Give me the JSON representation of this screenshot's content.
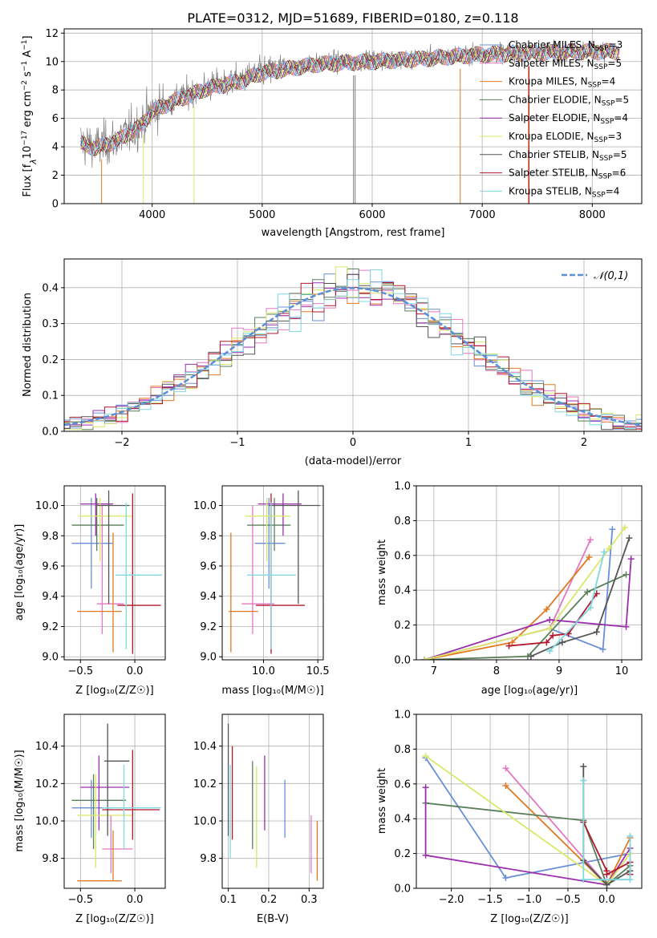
{
  "chart_data": {
    "colors": {
      "chabrier_miles": "#6a8fd8",
      "salpeter_miles": "#e377c2",
      "kroupa_miles": "#e07b24",
      "chabrier_elodie": "#5a7f5a",
      "salpeter_elodie": "#9b2fae",
      "kroupa_elodie": "#d9e868",
      "chabrier_stelib": "#555555",
      "salpeter_stelib": "#b2182b",
      "kroupa_stelib": "#7fd8e0",
      "gaussian": "#5b8fd6"
    },
    "spectrum": {
      "type": "line",
      "title": "PLATE=0312, MJD=51689, FIBERID=0180, z=0.118",
      "xlabel": "wavelength [Angstrom, rest frame]",
      "ylabel": "Flux [fλ10⁻¹⁷ erg cm⁻² s⁻¹ A⁻¹]",
      "xlim": [
        3200,
        8450
      ],
      "ylim": [
        0,
        12.3
      ],
      "xticks": [
        4000,
        5000,
        6000,
        7000,
        8000
      ],
      "yticks": [
        0,
        2,
        4,
        6,
        8,
        10,
        12
      ],
      "legend_position": "upper-right",
      "series": [
        {
          "name": "Chabrier MILES, N_SSP=3",
          "label": "Chabrier MILES, N",
          "sub": "SSP",
          "rest": "=3"
        },
        {
          "name": "Salpeter MILES, N_SSP=5",
          "label": "Salpeter MILES, N",
          "sub": "SSP",
          "rest": "=5"
        },
        {
          "name": "Kroupa MILES, N_SSP=4",
          "label": "Kroupa MILES, N",
          "sub": "SSP",
          "rest": "=4"
        },
        {
          "name": "Chabrier ELODIE, N_SSP=5",
          "label": "Chabrier ELODIE, N",
          "sub": "SSP",
          "rest": "=5"
        },
        {
          "name": "Salpeter ELODIE, N_SSP=4",
          "label": "Salpeter ELODIE, N",
          "sub": "SSP",
          "rest": "=4"
        },
        {
          "name": "Kroupa ELODIE, N_SSP=3",
          "label": "Kroupa ELODIE, N",
          "sub": "SSP",
          "rest": "=3"
        },
        {
          "name": "Chabrier STELIB, N_SSP=5",
          "label": "Chabrier STELIB, N",
          "sub": "SSP",
          "rest": "=5"
        },
        {
          "name": "Salpeter STELIB, N_SSP=6",
          "label": "Salpeter STELIB, N",
          "sub": "SSP",
          "rest": "=6"
        },
        {
          "name": "Kroupa STELIB, N_SSP=4",
          "label": "Kroupa STELIB, N",
          "sub": "SSP",
          "rest": "=4"
        }
      ],
      "continuum": [
        [
          3350,
          4.3
        ],
        [
          3500,
          4.0
        ],
        [
          3700,
          4.6
        ],
        [
          3900,
          5.6
        ],
        [
          4000,
          6.6
        ],
        [
          4200,
          7.3
        ],
        [
          4500,
          8.2
        ],
        [
          4800,
          8.7
        ],
        [
          5000,
          9.3
        ],
        [
          5500,
          9.9
        ],
        [
          6000,
          10.1
        ],
        [
          6500,
          10.3
        ],
        [
          7000,
          10.6
        ],
        [
          7500,
          10.7
        ],
        [
          8000,
          10.8
        ],
        [
          8250,
          10.8
        ]
      ]
    },
    "residuals": {
      "type": "histogram",
      "xlabel": "(data-model)/error",
      "ylabel": "Normed distribution",
      "xlim": [
        -2.5,
        2.5
      ],
      "ylim": [
        0,
        0.48
      ],
      "xticks": [
        -2,
        -1,
        0,
        1,
        2
      ],
      "yticks": [
        0.0,
        0.1,
        0.2,
        0.3,
        0.4
      ],
      "bin_width": 0.1,
      "legend": "𝒩(0,1)",
      "legend_position": "upper-right"
    },
    "age_vs_z": {
      "type": "errorbar",
      "xlabel": "Z [log₁₀(Z/Z☉)]",
      "ylabel": "age  [log₁₀(age/yr)]",
      "xlim": [
        -0.65,
        0.28
      ],
      "ylim": [
        8.98,
        10.13
      ],
      "xticks": [
        -0.5,
        0.0
      ],
      "yticks": [
        9.0,
        9.2,
        9.4,
        9.6,
        9.8,
        10.0
      ],
      "points": [
        {
          "k": "chabrier_miles",
          "x": -0.4,
          "xl": -0.58,
          "xh": -0.2,
          "y": 9.75,
          "yl": 9.45,
          "yh": 10.05
        },
        {
          "k": "salpeter_miles",
          "x": -0.3,
          "xl": -0.35,
          "xh": -0.1,
          "y": 9.35,
          "yl": 9.15,
          "yh": 10.0
        },
        {
          "k": "kroupa_miles",
          "x": -0.2,
          "xl": -0.53,
          "xh": -0.12,
          "y": 9.3,
          "yl": 9.03,
          "yh": 9.82
        },
        {
          "k": "chabrier_elodie",
          "x": -0.35,
          "xl": -0.58,
          "xh": -0.1,
          "y": 9.87,
          "yl": 9.7,
          "yh": 10.05
        },
        {
          "k": "salpeter_elodie",
          "x": -0.36,
          "xl": -0.5,
          "xh": -0.2,
          "y": 10.01,
          "yl": 9.8,
          "yh": 10.08
        },
        {
          "k": "kroupa_elodie",
          "x": -0.32,
          "xl": -0.52,
          "xh": -0.02,
          "y": 9.93,
          "yl": 9.63,
          "yh": 10.05
        },
        {
          "k": "chabrier_stelib",
          "x": -0.24,
          "xl": -0.35,
          "xh": -0.05,
          "y": 10.0,
          "yl": 9.35,
          "yh": 10.1
        },
        {
          "k": "salpeter_stelib",
          "x": -0.02,
          "xl": -0.16,
          "xh": 0.24,
          "y": 9.34,
          "yl": 9.02,
          "yh": 10.08
        },
        {
          "k": "kroupa_stelib",
          "x": -0.08,
          "xl": -0.18,
          "xh": 0.25,
          "y": 9.54,
          "yl": 9.05,
          "yh": 10.02
        }
      ]
    },
    "age_vs_mass": {
      "type": "errorbar",
      "xlabel": "mass [log₁₀(M/M☉)]",
      "xlim": [
        9.62,
        10.55
      ],
      "ylim": [
        8.98,
        10.13
      ],
      "xticks": [
        10.0,
        10.5
      ],
      "yticks": [
        9.0,
        9.2,
        9.4,
        9.6,
        9.8,
        10.0
      ],
      "points": [
        {
          "k": "chabrier_miles",
          "x": 10.05,
          "xl": 9.92,
          "xh": 10.2,
          "y": 9.75,
          "yl": 9.45,
          "yh": 10.05
        },
        {
          "k": "salpeter_miles",
          "x": 9.9,
          "xl": 9.8,
          "xh": 10.1,
          "y": 9.35,
          "yl": 9.15,
          "yh": 10.0
        },
        {
          "k": "kroupa_miles",
          "x": 9.7,
          "xl": 9.68,
          "xh": 9.95,
          "y": 9.3,
          "yl": 9.03,
          "yh": 9.82
        },
        {
          "k": "chabrier_elodie",
          "x": 10.1,
          "xl": 9.85,
          "xh": 10.25,
          "y": 9.87,
          "yl": 9.7,
          "yh": 10.05
        },
        {
          "k": "salpeter_elodie",
          "x": 10.18,
          "xl": 9.95,
          "xh": 10.35,
          "y": 10.01,
          "yl": 9.8,
          "yh": 10.08
        },
        {
          "k": "kroupa_elodie",
          "x": 10.03,
          "xl": 9.83,
          "xh": 10.25,
          "y": 9.93,
          "yl": 9.63,
          "yh": 10.05
        },
        {
          "k": "chabrier_stelib",
          "x": 10.32,
          "xl": 10.05,
          "xh": 10.52,
          "y": 10.0,
          "yl": 9.35,
          "yh": 10.1
        },
        {
          "k": "salpeter_stelib",
          "x": 10.07,
          "xl": 9.93,
          "xh": 10.38,
          "y": 9.34,
          "yl": 9.02,
          "yh": 10.08
        },
        {
          "k": "kroupa_stelib",
          "x": 10.07,
          "xl": 9.85,
          "xh": 10.3,
          "y": 9.54,
          "yl": 9.05,
          "yh": 10.02
        }
      ]
    },
    "weight_vs_age": {
      "type": "line",
      "xlabel": "age  [log₁₀(age/yr)]",
      "ylabel": "mass weight",
      "xlim": [
        6.72,
        10.32
      ],
      "ylim": [
        0,
        1.0
      ],
      "xticks": [
        7,
        8,
        9,
        10
      ],
      "yticks": [
        0.0,
        0.2,
        0.4,
        0.6,
        0.8,
        1.0
      ],
      "series": [
        {
          "k": "chabrier_miles",
          "points": [
            [
              6.85,
              0
            ],
            [
              8.85,
              0.18
            ],
            [
              9.7,
              0.06
            ],
            [
              9.85,
              0.75
            ]
          ]
        },
        {
          "k": "salpeter_miles",
          "points": [
            [
              6.85,
              0
            ],
            [
              8.85,
              0.18
            ],
            [
              9.5,
              0.69
            ]
          ]
        },
        {
          "k": "kroupa_miles",
          "points": [
            [
              6.85,
              0
            ],
            [
              8.25,
              0.1
            ],
            [
              8.8,
              0.29
            ],
            [
              9.48,
              0.59
            ]
          ]
        },
        {
          "k": "chabrier_elodie",
          "points": [
            [
              6.85,
              0
            ],
            [
              8.5,
              0.02
            ],
            [
              9.45,
              0.39
            ],
            [
              10.07,
              0.49
            ]
          ]
        },
        {
          "k": "salpeter_elodie",
          "points": [
            [
              6.85,
              0
            ],
            [
              8.85,
              0.23
            ],
            [
              10.07,
              0.19
            ],
            [
              10.15,
              0.58
            ]
          ]
        },
        {
          "k": "kroupa_elodie",
          "points": [
            [
              6.85,
              0
            ],
            [
              8.85,
              0.18
            ],
            [
              9.8,
              0.64
            ],
            [
              10.05,
              0.76
            ]
          ]
        },
        {
          "k": "chabrier_stelib",
          "points": [
            [
              8.55,
              0.02
            ],
            [
              9.05,
              0.1
            ],
            [
              9.6,
              0.16
            ],
            [
              10.12,
              0.7
            ]
          ]
        },
        {
          "k": "salpeter_stelib",
          "points": [
            [
              8.2,
              0.08
            ],
            [
              8.8,
              0.1
            ],
            [
              8.9,
              0.14
            ],
            [
              9.15,
              0.15
            ],
            [
              9.6,
              0.38
            ]
          ]
        },
        {
          "k": "kroupa_stelib",
          "points": [
            [
              8.85,
              0.05
            ],
            [
              9.5,
              0.3
            ],
            [
              9.72,
              0.62
            ]
          ]
        }
      ]
    },
    "mass_vs_z": {
      "type": "errorbar",
      "xlabel": "Z [log₁₀(Z/Z☉)]",
      "ylabel": "mass [log₁₀(M/M☉)]",
      "xlim": [
        -0.65,
        0.28
      ],
      "ylim": [
        9.64,
        10.57
      ],
      "xticks": [
        -0.5,
        0.0
      ],
      "yticks": [
        9.8,
        10.0,
        10.2,
        10.4
      ],
      "points": [
        {
          "k": "chabrier_miles",
          "x": -0.4,
          "xl": -0.58,
          "xh": -0.2,
          "y": 10.07,
          "yl": 9.91,
          "yh": 10.22
        },
        {
          "k": "salpeter_miles",
          "x": -0.22,
          "xl": -0.3,
          "xh": -0.02,
          "y": 9.85,
          "yl": 9.72,
          "yh": 10.03
        },
        {
          "k": "kroupa_miles",
          "x": -0.2,
          "xl": -0.53,
          "xh": -0.12,
          "y": 9.68,
          "yl": 9.68,
          "yh": 9.95
        },
        {
          "k": "chabrier_elodie",
          "x": -0.38,
          "xl": -0.58,
          "xh": -0.08,
          "y": 10.11,
          "yl": 9.85,
          "yh": 10.25
        },
        {
          "k": "salpeter_elodie",
          "x": -0.33,
          "xl": -0.5,
          "xh": -0.05,
          "y": 10.18,
          "yl": 9.95,
          "yh": 10.35
        },
        {
          "k": "kroupa_elodie",
          "x": -0.36,
          "xl": -0.53,
          "xh": -0.02,
          "y": 10.03,
          "yl": 9.75,
          "yh": 10.25
        },
        {
          "k": "chabrier_stelib",
          "x": -0.25,
          "xl": -0.28,
          "xh": -0.05,
          "y": 10.32,
          "yl": 9.92,
          "yh": 10.52
        },
        {
          "k": "salpeter_stelib",
          "x": -0.02,
          "xl": -0.3,
          "xh": 0.23,
          "y": 10.06,
          "yl": 9.9,
          "yh": 10.38
        },
        {
          "k": "kroupa_stelib",
          "x": -0.1,
          "xl": -0.3,
          "xh": 0.24,
          "y": 10.07,
          "yl": 9.85,
          "yh": 10.3
        }
      ]
    },
    "mass_vs_ebv": {
      "type": "errorbar",
      "xlabel": "E(B-V)",
      "xlim": [
        0.085,
        0.335
      ],
      "ylim": [
        9.64,
        10.57
      ],
      "xticks": [
        0.1,
        0.2,
        0.3
      ],
      "yticks": [
        9.8,
        10.0,
        10.2,
        10.4
      ],
      "points": [
        {
          "k": "chabrier_miles",
          "x": 0.24,
          "y": 10.07,
          "yl": 9.91,
          "yh": 10.22
        },
        {
          "k": "salpeter_miles",
          "x": 0.305,
          "y": 9.85,
          "yl": 9.72,
          "yh": 10.03
        },
        {
          "k": "kroupa_miles",
          "x": 0.32,
          "y": 9.82,
          "yl": 9.68,
          "yh": 10.0
        },
        {
          "k": "chabrier_elodie",
          "x": 0.16,
          "y": 10.11,
          "yl": 9.85,
          "yh": 10.32
        },
        {
          "k": "salpeter_elodie",
          "x": 0.19,
          "y": 10.18,
          "yl": 9.95,
          "yh": 10.35
        },
        {
          "k": "kroupa_elodie",
          "x": 0.17,
          "y": 10.03,
          "yl": 9.75,
          "yh": 10.29
        },
        {
          "k": "chabrier_stelib",
          "x": 0.1,
          "y": 10.32,
          "yl": 9.92,
          "yh": 10.52
        },
        {
          "k": "salpeter_stelib",
          "x": 0.11,
          "y": 10.06,
          "yl": 9.9,
          "yh": 10.4
        },
        {
          "k": "kroupa_stelib",
          "x": 0.105,
          "y": 10.07,
          "yl": 9.8,
          "yh": 10.3
        }
      ]
    },
    "weight_vs_z": {
      "type": "line",
      "xlabel": "Z [log₁₀(Z/Z☉)]",
      "ylabel": "mass weight",
      "xlim": [
        -2.45,
        0.45
      ],
      "ylim": [
        0,
        1.0
      ],
      "xticks": [
        -2.0,
        -1.5,
        -1.0,
        -0.5,
        0.0
      ],
      "yticks": [
        0.0,
        0.2,
        0.4,
        0.6,
        0.8,
        1.0
      ],
      "series": [
        {
          "k": "chabrier_miles",
          "points": [
            [
              -2.33,
              0.75
            ],
            [
              -1.3,
              0.06
            ],
            [
              0.3,
              0.2
            ]
          ]
        },
        {
          "k": "salpeter_miles",
          "points": [
            [
              -1.3,
              0.69
            ],
            [
              0.0,
              0.02
            ],
            [
              0.3,
              0.2
            ]
          ]
        },
        {
          "k": "kroupa_miles",
          "points": [
            [
              -1.3,
              0.59
            ],
            [
              0.0,
              0.02
            ],
            [
              0.3,
              0.29
            ]
          ]
        },
        {
          "k": "chabrier_elodie",
          "points": [
            [
              -2.33,
              0.49
            ],
            [
              -0.3,
              0.39
            ],
            [
              0.0,
              0.02
            ],
            [
              0.3,
              0.13
            ]
          ]
        },
        {
          "k": "salpeter_elodie",
          "points": [
            [
              -2.33,
              0.58
            ],
            [
              -2.33,
              0.19
            ],
            [
              0.0,
              0.02
            ],
            [
              0.3,
              0.23
            ]
          ]
        },
        {
          "k": "kroupa_elodie",
          "points": [
            [
              -2.33,
              0.76
            ],
            [
              0.0,
              0.02
            ],
            [
              0.3,
              0.2
            ]
          ]
        },
        {
          "k": "chabrier_stelib",
          "points": [
            [
              -0.3,
              0.7
            ],
            [
              -0.3,
              0.16
            ],
            [
              0.0,
              0.02
            ],
            [
              0.3,
              0.1
            ]
          ]
        },
        {
          "k": "salpeter_stelib",
          "points": [
            [
              -0.3,
              0.38
            ],
            [
              0.0,
              0.1
            ],
            [
              0.0,
              0.08
            ],
            [
              0.3,
              0.15
            ],
            [
              0.3,
              0.08
            ]
          ]
        },
        {
          "k": "kroupa_stelib",
          "points": [
            [
              -0.3,
              0.62
            ],
            [
              -0.3,
              0.05
            ],
            [
              0.3,
              0.05
            ],
            [
              0.3,
              0.3
            ]
          ]
        }
      ]
    }
  }
}
